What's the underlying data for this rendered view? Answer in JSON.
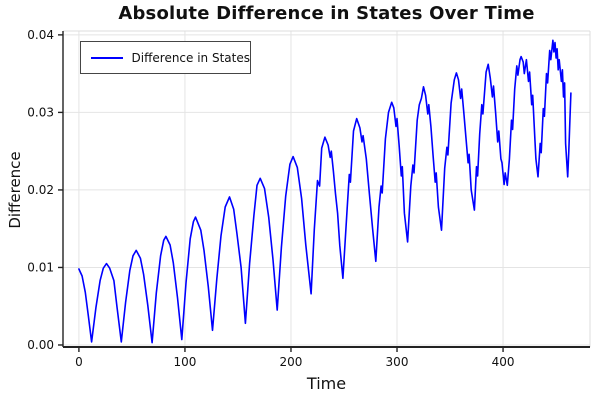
{
  "chart_data": {
    "type": "line",
    "title": "Absolute Difference in States Over Time",
    "xlabel": "Time",
    "ylabel": "Difference",
    "xlim": [
      -15,
      482
    ],
    "ylim": [
      -0.00026,
      0.0405
    ],
    "grid": true,
    "x_ticks": [
      0,
      100,
      200,
      300,
      400
    ],
    "y_ticks": [
      "0.00",
      "0.01",
      "0.02",
      "0.03",
      "0.04"
    ],
    "legend": {
      "position": "top-left",
      "label": "Difference in States"
    },
    "line_color": "#0000ff",
    "series": [
      {
        "name": "Difference in States",
        "color": "#0000ff",
        "points": [
          [
            0,
            0.0098
          ],
          [
            3,
            0.0089
          ],
          [
            6,
            0.0068
          ],
          [
            9,
            0.0037
          ],
          [
            12,
            0.0004
          ],
          [
            16,
            0.0048
          ],
          [
            20,
            0.0083
          ],
          [
            23,
            0.0099
          ],
          [
            26,
            0.0105
          ],
          [
            29,
            0.0099
          ],
          [
            33,
            0.0083
          ],
          [
            36,
            0.0048
          ],
          [
            40,
            0.0004
          ],
          [
            44,
            0.0055
          ],
          [
            48,
            0.0096
          ],
          [
            51,
            0.0115
          ],
          [
            54,
            0.0122
          ],
          [
            58,
            0.0112
          ],
          [
            61,
            0.0091
          ],
          [
            65,
            0.0051
          ],
          [
            69,
            0.0003
          ],
          [
            73,
            0.0067
          ],
          [
            77,
            0.0115
          ],
          [
            80,
            0.0135
          ],
          [
            82,
            0.014
          ],
          [
            86,
            0.0129
          ],
          [
            89,
            0.0106
          ],
          [
            93,
            0.0061
          ],
          [
            97,
            0.0007
          ],
          [
            101,
            0.008
          ],
          [
            105,
            0.0137
          ],
          [
            108,
            0.0159
          ],
          [
            110,
            0.0165
          ],
          [
            115,
            0.0148
          ],
          [
            118,
            0.0122
          ],
          [
            122,
            0.0075
          ],
          [
            126,
            0.0019
          ],
          [
            130,
            0.0085
          ],
          [
            134,
            0.0141
          ],
          [
            138,
            0.0178
          ],
          [
            142,
            0.0191
          ],
          [
            146,
            0.0175
          ],
          [
            149,
            0.0144
          ],
          [
            153,
            0.01
          ],
          [
            157,
            0.0028
          ],
          [
            161,
            0.0105
          ],
          [
            165,
            0.0167
          ],
          [
            168,
            0.0206
          ],
          [
            171,
            0.0215
          ],
          [
            175,
            0.0202
          ],
          [
            179,
            0.0165
          ],
          [
            183,
            0.011
          ],
          [
            187,
            0.0045
          ],
          [
            191,
            0.0126
          ],
          [
            195,
            0.0192
          ],
          [
            199,
            0.0233
          ],
          [
            202,
            0.0243
          ],
          [
            206,
            0.0229
          ],
          [
            210,
            0.0189
          ],
          [
            214,
            0.0129
          ],
          [
            219,
            0.0066
          ],
          [
            222,
            0.0149
          ],
          [
            225,
            0.0212
          ],
          [
            227,
            0.0205
          ],
          [
            229,
            0.0254
          ],
          [
            232,
            0.0268
          ],
          [
            235,
            0.0258
          ],
          [
            237,
            0.0242
          ],
          [
            238,
            0.025
          ],
          [
            240,
            0.0224
          ],
          [
            242,
            0.0195
          ],
          [
            244,
            0.017
          ],
          [
            246,
            0.0128
          ],
          [
            249,
            0.0086
          ],
          [
            253,
            0.0177
          ],
          [
            255,
            0.022
          ],
          [
            256,
            0.021
          ],
          [
            259,
            0.0276
          ],
          [
            262,
            0.0292
          ],
          [
            265,
            0.028
          ],
          [
            267,
            0.0262
          ],
          [
            268,
            0.027
          ],
          [
            271,
            0.024
          ],
          [
            274,
            0.0195
          ],
          [
            277,
            0.015
          ],
          [
            280,
            0.0108
          ],
          [
            283,
            0.0178
          ],
          [
            285,
            0.0205
          ],
          [
            286,
            0.0196
          ],
          [
            289,
            0.0266
          ],
          [
            292,
            0.03
          ],
          [
            295,
            0.0313
          ],
          [
            297,
            0.0306
          ],
          [
            299,
            0.0282
          ],
          [
            300,
            0.0292
          ],
          [
            302,
            0.0258
          ],
          [
            304,
            0.0218
          ],
          [
            305,
            0.023
          ],
          [
            307,
            0.017
          ],
          [
            310,
            0.0133
          ],
          [
            313,
            0.0205
          ],
          [
            315,
            0.0232
          ],
          [
            316,
            0.0222
          ],
          [
            319,
            0.029
          ],
          [
            321,
            0.031
          ],
          [
            323,
            0.0318
          ],
          [
            325,
            0.0333
          ],
          [
            327,
            0.0322
          ],
          [
            329,
            0.0298
          ],
          [
            330,
            0.031
          ],
          [
            332,
            0.0282
          ],
          [
            334,
            0.0244
          ],
          [
            336,
            0.021
          ],
          [
            337,
            0.0222
          ],
          [
            339,
            0.0178
          ],
          [
            342,
            0.0148
          ],
          [
            345,
            0.0228
          ],
          [
            347,
            0.0255
          ],
          [
            348,
            0.0245
          ],
          [
            351,
            0.0312
          ],
          [
            354,
            0.0342
          ],
          [
            356,
            0.0351
          ],
          [
            358,
            0.0342
          ],
          [
            360,
            0.0318
          ],
          [
            361,
            0.033
          ],
          [
            363,
            0.03
          ],
          [
            365,
            0.0268
          ],
          [
            367,
            0.0235
          ],
          [
            368,
            0.0246
          ],
          [
            370,
            0.02
          ],
          [
            373,
            0.0174
          ],
          [
            375,
            0.023
          ],
          [
            376,
            0.0218
          ],
          [
            378,
            0.0272
          ],
          [
            380,
            0.031
          ],
          [
            381,
            0.0298
          ],
          [
            384,
            0.0352
          ],
          [
            386,
            0.0362
          ],
          [
            388,
            0.0344
          ],
          [
            390,
            0.032
          ],
          [
            391,
            0.0334
          ],
          [
            393,
            0.03
          ],
          [
            395,
            0.0262
          ],
          [
            396,
            0.0276
          ],
          [
            398,
            0.024
          ],
          [
            399,
            0.0235
          ],
          [
            401,
            0.0207
          ],
          [
            402,
            0.0222
          ],
          [
            404,
            0.0206
          ],
          [
            406,
            0.024
          ],
          [
            408,
            0.029
          ],
          [
            409,
            0.0278
          ],
          [
            411,
            0.033
          ],
          [
            413,
            0.036
          ],
          [
            414,
            0.0348
          ],
          [
            416,
            0.0368
          ],
          [
            417,
            0.0372
          ],
          [
            419,
            0.0365
          ],
          [
            420,
            0.035
          ],
          [
            422,
            0.0368
          ],
          [
            424,
            0.034
          ],
          [
            425,
            0.0352
          ],
          [
            427,
            0.031
          ],
          [
            428,
            0.0322
          ],
          [
            430,
            0.0265
          ],
          [
            431,
            0.024
          ],
          [
            433,
            0.0217
          ],
          [
            435,
            0.026
          ],
          [
            436,
            0.0248
          ],
          [
            438,
            0.0305
          ],
          [
            439,
            0.0295
          ],
          [
            441,
            0.035
          ],
          [
            442,
            0.0338
          ],
          [
            444,
            0.038
          ],
          [
            445,
            0.0368
          ],
          [
            447,
            0.0393
          ],
          [
            448,
            0.0378
          ],
          [
            449,
            0.039
          ],
          [
            450,
            0.037
          ],
          [
            451,
            0.0382
          ],
          [
            452,
            0.0355
          ],
          [
            453,
            0.0368
          ],
          [
            455,
            0.034
          ],
          [
            456,
            0.0355
          ],
          [
            457,
            0.032
          ],
          [
            458,
            0.0338
          ],
          [
            459,
            0.026
          ],
          [
            461,
            0.0217
          ],
          [
            462,
            0.025
          ],
          [
            463,
            0.029
          ],
          [
            464,
            0.0325
          ]
        ]
      }
    ],
    "colors": {
      "grid": "#e4e4e4",
      "frame_light": "#dcdcdc",
      "spine": "#222222",
      "text": "#111111"
    }
  }
}
